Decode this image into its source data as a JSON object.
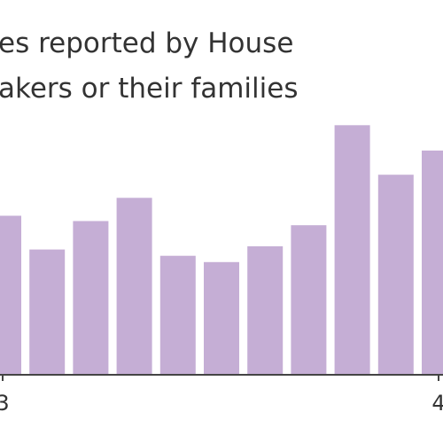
{
  "chart_data": {
    "type": "bar",
    "title_lines": [
      "es reported by House",
      "akers or their families"
    ],
    "categories": [
      "",
      "",
      "",
      "",
      "",
      "",
      "",
      "",
      "",
      "",
      ""
    ],
    "values": [
      151,
      119,
      146,
      168,
      113,
      107,
      122,
      142,
      237,
      190,
      213
    ],
    "ylim": [
      0,
      260
    ],
    "x_tick_labels": [
      "3",
      "4"
    ],
    "grid": false,
    "colors": {
      "bar": "#C5AED5",
      "axis": "#444444",
      "text": "#333333"
    }
  }
}
